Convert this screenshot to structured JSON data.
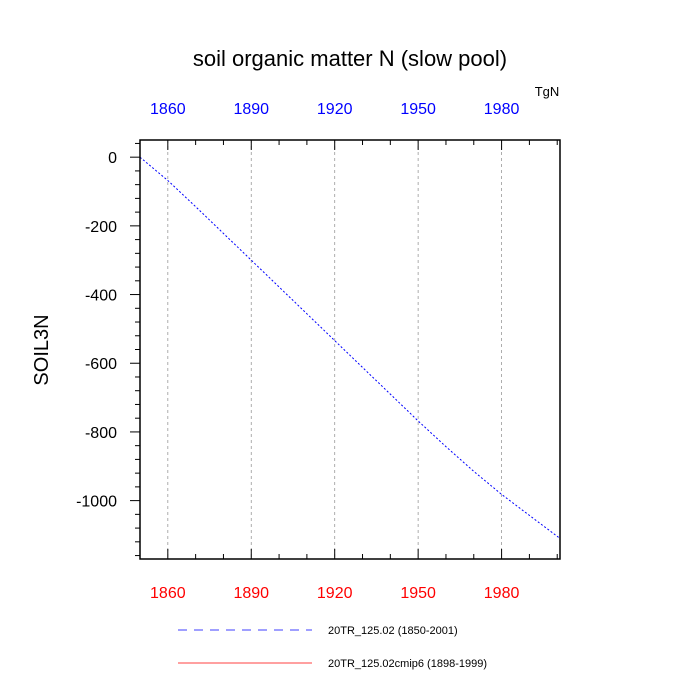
{
  "colors": {
    "top_ticks": "#0000ff",
    "bottom_ticks": "#ff0000",
    "series_1": "#0000ff",
    "series_2": "#ff0000",
    "grid": "#999999",
    "axis": "#000000"
  },
  "chart_data": {
    "type": "line",
    "title": "soil organic matter N (slow pool)",
    "ylabel": "SOIL3N",
    "units": "TgN",
    "xlabel": "",
    "xlim": [
      1850,
      2001
    ],
    "ylim": [
      -1170,
      50
    ],
    "x_ticks": [
      1860,
      1890,
      1920,
      1950,
      1980
    ],
    "y_ticks": [
      0,
      -200,
      -400,
      -600,
      -800,
      -1000
    ],
    "y_minor_step": 40,
    "x_minor_step": 10,
    "grid": "vertical dashed at x ticks",
    "series": [
      {
        "name": "20TR_125.02 (1850-2001)",
        "style": "dashed",
        "color": "#0000ff",
        "x": [
          1850,
          1860,
          1870,
          1880,
          1890,
          1900,
          1910,
          1920,
          1930,
          1940,
          1950,
          1960,
          1970,
          1980,
          1990,
          2001
        ],
        "y": [
          0,
          -68,
          -144,
          -222,
          -300,
          -378,
          -456,
          -534,
          -612,
          -690,
          -768,
          -843,
          -915,
          -982,
          -1043,
          -1110
        ]
      },
      {
        "name": "20TR_125.02cmip6 (1898-1999)",
        "style": "solid",
        "color": "#ff0000",
        "x": [],
        "y": []
      }
    ]
  }
}
